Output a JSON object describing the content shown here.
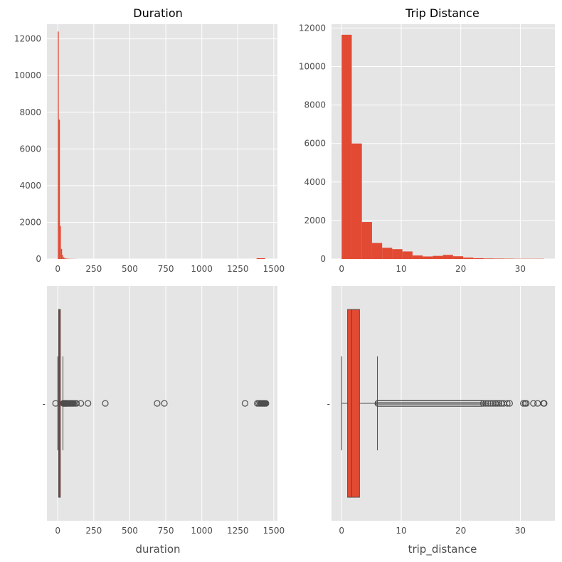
{
  "figure": {
    "colors": {
      "panel_bg": "#e5e5e5",
      "grid": "#ffffff",
      "bar": "#e24a33",
      "box_line": "#4d4d4d",
      "text": "#4d4d4d"
    }
  },
  "chart_data": [
    {
      "type": "bar",
      "title": "Duration",
      "xlabel": "",
      "ylabel": "",
      "xlim": [
        -75,
        1525
      ],
      "ylim": [
        0,
        12800
      ],
      "xticks": [
        0,
        250,
        500,
        750,
        1000,
        1250,
        1500
      ],
      "yticks": [
        0,
        2000,
        4000,
        6000,
        8000,
        10000,
        12000
      ],
      "bins": [
        {
          "x0": 0,
          "x1": 7,
          "count": 12400
        },
        {
          "x0": 7,
          "x1": 15,
          "count": 7600
        },
        {
          "x0": 15,
          "x1": 22,
          "count": 1800
        },
        {
          "x0": 22,
          "x1": 30,
          "count": 550
        },
        {
          "x0": 30,
          "x1": 37,
          "count": 220
        },
        {
          "x0": 37,
          "x1": 45,
          "count": 90
        },
        {
          "x0": 45,
          "x1": 52,
          "count": 45
        },
        {
          "x0": 52,
          "x1": 60,
          "count": 25
        },
        {
          "x0": 60,
          "x1": 75,
          "count": 15
        },
        {
          "x0": 75,
          "x1": 100,
          "count": 8
        },
        {
          "x0": 100,
          "x1": 130,
          "count": 5
        },
        {
          "x0": 1380,
          "x1": 1440,
          "count": 40
        }
      ],
      "grid": true
    },
    {
      "type": "bar",
      "title": "Trip Distance",
      "xlabel": "",
      "ylabel": "",
      "xlim": [
        -1.7,
        35.8
      ],
      "ylim": [
        0,
        12200
      ],
      "xticks": [
        0,
        10,
        20,
        30
      ],
      "yticks": [
        0,
        2000,
        4000,
        6000,
        8000,
        10000,
        12000
      ],
      "bins": [
        {
          "x0": 0,
          "x1": 1.7,
          "count": 11650
        },
        {
          "x0": 1.7,
          "x1": 3.4,
          "count": 6000
        },
        {
          "x0": 3.4,
          "x1": 5.1,
          "count": 1920
        },
        {
          "x0": 5.1,
          "x1": 6.8,
          "count": 830
        },
        {
          "x0": 6.8,
          "x1": 8.5,
          "count": 580
        },
        {
          "x0": 8.5,
          "x1": 10.2,
          "count": 510
        },
        {
          "x0": 10.2,
          "x1": 11.9,
          "count": 390
        },
        {
          "x0": 11.9,
          "x1": 13.6,
          "count": 180
        },
        {
          "x0": 13.6,
          "x1": 15.3,
          "count": 130
        },
        {
          "x0": 15.3,
          "x1": 17.0,
          "count": 160
        },
        {
          "x0": 17.0,
          "x1": 18.7,
          "count": 210
        },
        {
          "x0": 18.7,
          "x1": 20.4,
          "count": 140
        },
        {
          "x0": 20.4,
          "x1": 22.1,
          "count": 70
        },
        {
          "x0": 22.1,
          "x1": 23.8,
          "count": 40
        },
        {
          "x0": 23.8,
          "x1": 25.5,
          "count": 25
        },
        {
          "x0": 25.5,
          "x1": 27.2,
          "count": 20
        },
        {
          "x0": 27.2,
          "x1": 28.9,
          "count": 15
        },
        {
          "x0": 28.9,
          "x1": 30.6,
          "count": 10
        },
        {
          "x0": 30.6,
          "x1": 32.3,
          "count": 10
        },
        {
          "x0": 32.3,
          "x1": 34.0,
          "count": 10
        }
      ],
      "grid": true
    },
    {
      "type": "box",
      "title": "",
      "xlabel": "duration",
      "ylabel": "",
      "ytick_label": "-",
      "xlim": [
        -75,
        1525
      ],
      "xticks": [
        0,
        250,
        500,
        750,
        1000,
        1250,
        1500
      ],
      "box": {
        "q1": 6,
        "median": 11,
        "q3": 18,
        "whisker_low": 0,
        "whisker_high": 36
      },
      "outliers": [
        -15,
        38,
        40,
        42,
        45,
        48,
        50,
        52,
        55,
        58,
        60,
        63,
        66,
        70,
        75,
        80,
        85,
        90,
        95,
        100,
        105,
        110,
        120,
        130,
        160,
        210,
        330,
        690,
        740,
        1300,
        1385,
        1395,
        1405,
        1410,
        1415,
        1420,
        1425,
        1430,
        1435,
        1440,
        1445
      ],
      "grid": true
    },
    {
      "type": "box",
      "title": "",
      "xlabel": "trip_distance",
      "ylabel": "",
      "ytick_label": "-",
      "xlim": [
        -1.7,
        35.8
      ],
      "xticks": [
        0,
        10,
        20,
        30
      ],
      "box": {
        "q1": 1.0,
        "median": 1.7,
        "q3": 3.0,
        "whisker_low": 0,
        "whisker_high": 6.0
      },
      "outlier_range": [
        6.1,
        23.5
      ],
      "outliers": [
        23.8,
        24.2,
        24.6,
        25.0,
        25.4,
        25.8,
        26.1,
        26.4,
        26.8,
        27.2,
        27.8,
        28.2,
        30.5,
        30.8,
        31.0,
        32.2,
        32.9,
        33.9,
        34.0
      ],
      "grid": true
    }
  ]
}
